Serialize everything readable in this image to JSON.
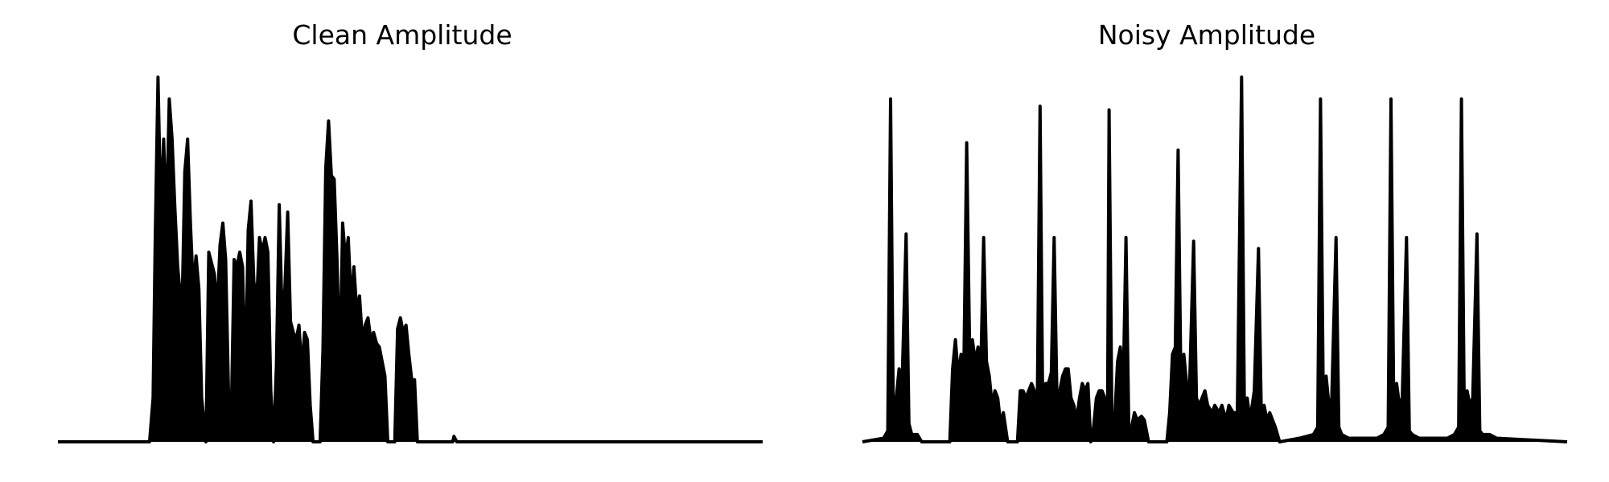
{
  "chart_data": [
    {
      "type": "line",
      "title": "Clean Amplitude",
      "xlabel": "",
      "ylabel": "",
      "grid": false,
      "axes_visible": false,
      "legend": false,
      "color": "#000000",
      "ylim": [
        0,
        1
      ],
      "xlim": [
        0,
        1
      ],
      "series": [
        {
          "values": [
            [
              0.0,
              0.0
            ],
            [
              0.13,
              0.0
            ],
            [
              0.135,
              0.12
            ],
            [
              0.138,
              0.55
            ],
            [
              0.142,
              1.0
            ],
            [
              0.146,
              0.62
            ],
            [
              0.15,
              0.83
            ],
            [
              0.154,
              0.6
            ],
            [
              0.158,
              0.94
            ],
            [
              0.162,
              0.83
            ],
            [
              0.166,
              0.64
            ],
            [
              0.17,
              0.48
            ],
            [
              0.176,
              0.35
            ],
            [
              0.18,
              0.74
            ],
            [
              0.184,
              0.83
            ],
            [
              0.188,
              0.6
            ],
            [
              0.192,
              0.42
            ],
            [
              0.196,
              0.51
            ],
            [
              0.2,
              0.42
            ],
            [
              0.204,
              0.12
            ],
            [
              0.21,
              0.0
            ],
            [
              0.214,
              0.52
            ],
            [
              0.218,
              0.49
            ],
            [
              0.222,
              0.46
            ],
            [
              0.226,
              0.36
            ],
            [
              0.23,
              0.54
            ],
            [
              0.234,
              0.6
            ],
            [
              0.238,
              0.5
            ],
            [
              0.242,
              0.14
            ],
            [
              0.246,
              0.07
            ],
            [
              0.25,
              0.5
            ],
            [
              0.254,
              0.48
            ],
            [
              0.258,
              0.52
            ],
            [
              0.262,
              0.48
            ],
            [
              0.266,
              0.16
            ],
            [
              0.27,
              0.58
            ],
            [
              0.274,
              0.66
            ],
            [
              0.278,
              0.44
            ],
            [
              0.282,
              0.38
            ],
            [
              0.286,
              0.56
            ],
            [
              0.29,
              0.52
            ],
            [
              0.294,
              0.56
            ],
            [
              0.298,
              0.52
            ],
            [
              0.302,
              0.14
            ],
            [
              0.306,
              0.0
            ],
            [
              0.31,
              0.21
            ],
            [
              0.314,
              0.65
            ],
            [
              0.318,
              0.35
            ],
            [
              0.322,
              0.42
            ],
            [
              0.326,
              0.63
            ],
            [
              0.33,
              0.33
            ],
            [
              0.334,
              0.3
            ],
            [
              0.338,
              0.28
            ],
            [
              0.342,
              0.32
            ],
            [
              0.346,
              0.2
            ],
            [
              0.35,
              0.3
            ],
            [
              0.354,
              0.28
            ],
            [
              0.358,
              0.1
            ],
            [
              0.362,
              0.0
            ],
            [
              0.372,
              0.0
            ],
            [
              0.376,
              0.25
            ],
            [
              0.38,
              0.75
            ],
            [
              0.384,
              0.88
            ],
            [
              0.388,
              0.73
            ],
            [
              0.392,
              0.72
            ],
            [
              0.396,
              0.5
            ],
            [
              0.4,
              0.2
            ],
            [
              0.404,
              0.6
            ],
            [
              0.408,
              0.5
            ],
            [
              0.412,
              0.56
            ],
            [
              0.416,
              0.38
            ],
            [
              0.42,
              0.48
            ],
            [
              0.424,
              0.36
            ],
            [
              0.428,
              0.4
            ],
            [
              0.432,
              0.28
            ],
            [
              0.436,
              0.32
            ],
            [
              0.44,
              0.34
            ],
            [
              0.444,
              0.28
            ],
            [
              0.448,
              0.3
            ],
            [
              0.452,
              0.27
            ],
            [
              0.456,
              0.26
            ],
            [
              0.46,
              0.22
            ],
            [
              0.464,
              0.18
            ],
            [
              0.468,
              0.0
            ],
            [
              0.478,
              0.0
            ],
            [
              0.482,
              0.31
            ],
            [
              0.486,
              0.34
            ],
            [
              0.49,
              0.3
            ],
            [
              0.494,
              0.32
            ],
            [
              0.498,
              0.24
            ],
            [
              0.502,
              0.17
            ],
            [
              0.506,
              0.17
            ],
            [
              0.51,
              0.0
            ],
            [
              0.56,
              0.0
            ],
            [
              0.562,
              0.015
            ],
            [
              0.566,
              0.0
            ],
            [
              1.0,
              0.0
            ]
          ]
        }
      ]
    },
    {
      "type": "line",
      "title": "Noisy Amplitude",
      "xlabel": "",
      "ylabel": "",
      "grid": false,
      "axes_visible": false,
      "legend": false,
      "color": "#000000",
      "ylim": [
        0,
        1
      ],
      "xlim": [
        0,
        1
      ],
      "series": [
        {
          "values": [
            [
              0.0,
              0.0
            ],
            [
              0.03,
              0.01
            ],
            [
              0.036,
              0.03
            ],
            [
              0.04,
              0.94
            ],
            [
              0.044,
              0.04
            ],
            [
              0.048,
              0.12
            ],
            [
              0.052,
              0.2
            ],
            [
              0.056,
              0.14
            ],
            [
              0.062,
              0.57
            ],
            [
              0.066,
              0.05
            ],
            [
              0.07,
              0.02
            ],
            [
              0.078,
              0.02
            ],
            [
              0.084,
              0.0
            ],
            [
              0.124,
              0.0
            ],
            [
              0.128,
              0.2
            ],
            [
              0.132,
              0.28
            ],
            [
              0.136,
              0.18
            ],
            [
              0.14,
              0.24
            ],
            [
              0.144,
              0.2
            ],
            [
              0.148,
              0.82
            ],
            [
              0.152,
              0.26
            ],
            [
              0.156,
              0.28
            ],
            [
              0.16,
              0.22
            ],
            [
              0.164,
              0.26
            ],
            [
              0.168,
              0.2
            ],
            [
              0.172,
              0.56
            ],
            [
              0.176,
              0.22
            ],
            [
              0.18,
              0.18
            ],
            [
              0.184,
              0.1
            ],
            [
              0.188,
              0.14
            ],
            [
              0.192,
              0.12
            ],
            [
              0.196,
              0.05
            ],
            [
              0.2,
              0.08
            ],
            [
              0.206,
              0.0
            ],
            [
              0.22,
              0.0
            ],
            [
              0.224,
              0.14
            ],
            [
              0.228,
              0.14
            ],
            [
              0.232,
              0.12
            ],
            [
              0.236,
              0.14
            ],
            [
              0.24,
              0.16
            ],
            [
              0.244,
              0.14
            ],
            [
              0.248,
              0.06
            ],
            [
              0.252,
              0.92
            ],
            [
              0.256,
              0.04
            ],
            [
              0.26,
              0.16
            ],
            [
              0.264,
              0.16
            ],
            [
              0.268,
              0.19
            ],
            [
              0.272,
              0.56
            ],
            [
              0.276,
              0.12
            ],
            [
              0.28,
              0.14
            ],
            [
              0.284,
              0.18
            ],
            [
              0.288,
              0.2
            ],
            [
              0.292,
              0.2
            ],
            [
              0.296,
              0.12
            ],
            [
              0.3,
              0.1
            ],
            [
              0.304,
              0.06
            ],
            [
              0.308,
              0.12
            ],
            [
              0.312,
              0.16
            ],
            [
              0.316,
              0.14
            ],
            [
              0.32,
              0.16
            ],
            [
              0.324,
              0.0
            ],
            [
              0.328,
              0.04
            ],
            [
              0.332,
              0.12
            ],
            [
              0.336,
              0.14
            ],
            [
              0.34,
              0.14
            ],
            [
              0.344,
              0.12
            ],
            [
              0.348,
              0.12
            ],
            [
              0.35,
              0.91
            ],
            [
              0.354,
              0.06
            ],
            [
              0.358,
              0.06
            ],
            [
              0.362,
              0.22
            ],
            [
              0.366,
              0.26
            ],
            [
              0.37,
              0.14
            ],
            [
              0.374,
              0.56
            ],
            [
              0.378,
              0.04
            ],
            [
              0.382,
              0.04
            ],
            [
              0.386,
              0.08
            ],
            [
              0.39,
              0.06
            ],
            [
              0.396,
              0.07
            ],
            [
              0.4,
              0.06
            ],
            [
              0.406,
              0.0
            ],
            [
              0.432,
              0.0
            ],
            [
              0.436,
              0.08
            ],
            [
              0.44,
              0.24
            ],
            [
              0.444,
              0.26
            ],
            [
              0.448,
              0.8
            ],
            [
              0.452,
              0.14
            ],
            [
              0.456,
              0.24
            ],
            [
              0.46,
              0.16
            ],
            [
              0.464,
              0.14
            ],
            [
              0.47,
              0.55
            ],
            [
              0.474,
              0.12
            ],
            [
              0.478,
              0.1
            ],
            [
              0.482,
              0.12
            ],
            [
              0.486,
              0.14
            ],
            [
              0.49,
              0.1
            ],
            [
              0.496,
              0.08
            ],
            [
              0.5,
              0.1
            ],
            [
              0.506,
              0.08
            ],
            [
              0.51,
              0.1
            ],
            [
              0.516,
              0.06
            ],
            [
              0.52,
              0.1
            ],
            [
              0.526,
              0.08
            ],
            [
              0.532,
              0.08
            ],
            [
              0.538,
              1.0
            ],
            [
              0.542,
              0.08
            ],
            [
              0.546,
              0.12
            ],
            [
              0.55,
              0.06
            ],
            [
              0.556,
              0.14
            ],
            [
              0.562,
              0.53
            ],
            [
              0.566,
              0.08
            ],
            [
              0.57,
              0.1
            ],
            [
              0.574,
              0.06
            ],
            [
              0.578,
              0.08
            ],
            [
              0.582,
              0.06
            ],
            [
              0.586,
              0.04
            ],
            [
              0.592,
              0.0
            ],
            [
              0.62,
              0.01
            ],
            [
              0.64,
              0.02
            ],
            [
              0.646,
              0.04
            ],
            [
              0.65,
              0.94
            ],
            [
              0.654,
              0.1
            ],
            [
              0.658,
              0.18
            ],
            [
              0.662,
              0.1
            ],
            [
              0.666,
              0.12
            ],
            [
              0.672,
              0.56
            ],
            [
              0.676,
              0.04
            ],
            [
              0.68,
              0.02
            ],
            [
              0.69,
              0.01
            ],
            [
              0.73,
              0.01
            ],
            [
              0.74,
              0.02
            ],
            [
              0.746,
              0.04
            ],
            [
              0.75,
              0.94
            ],
            [
              0.754,
              0.08
            ],
            [
              0.758,
              0.16
            ],
            [
              0.762,
              0.1
            ],
            [
              0.766,
              0.12
            ],
            [
              0.772,
              0.56
            ],
            [
              0.776,
              0.03
            ],
            [
              0.78,
              0.02
            ],
            [
              0.79,
              0.01
            ],
            [
              0.83,
              0.01
            ],
            [
              0.84,
              0.02
            ],
            [
              0.846,
              0.04
            ],
            [
              0.85,
              0.94
            ],
            [
              0.854,
              0.08
            ],
            [
              0.858,
              0.14
            ],
            [
              0.862,
              0.1
            ],
            [
              0.866,
              0.12
            ],
            [
              0.872,
              0.57
            ],
            [
              0.876,
              0.03
            ],
            [
              0.88,
              0.02
            ],
            [
              0.89,
              0.02
            ],
            [
              0.9,
              0.01
            ],
            [
              1.0,
              0.0
            ]
          ]
        }
      ]
    }
  ]
}
